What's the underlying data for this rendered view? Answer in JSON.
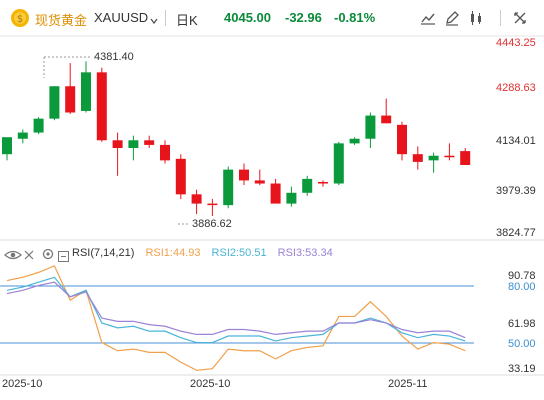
{
  "header": {
    "symbol_name": "现货黄金",
    "symbol_code": "XAUUSD",
    "period": "日K",
    "price": "4045.00",
    "change": "-32.96",
    "change_pct": "-0.81%",
    "icons": [
      "draw-line-icon",
      "edit-pen-icon",
      "indicator-icon",
      "expand-icon",
      "settings-icon"
    ]
  },
  "colors": {
    "up": "#e8141b",
    "down": "#0a9a3c",
    "rsi1": "#f0a04b",
    "rsi2": "#4ab4d8",
    "rsi3": "#9a82d6",
    "price_line": "#4a90d9"
  },
  "price_axis": {
    "ticks": [
      "4443.25",
      "4288.63",
      "4134.01",
      "3979.39",
      "3824.77"
    ]
  },
  "annotations": {
    "high": "4381.40",
    "low": "3886.62"
  },
  "rsi": {
    "label": "RSI(7,14,21)",
    "rsi1": "RSI1:44.93",
    "rsi2": "RSI2:50.51",
    "rsi3": "RSI3:53.34",
    "ticks": [
      "90.78",
      "80.00",
      "61.98",
      "50.00",
      "33.19"
    ]
  },
  "x_axis": {
    "labels": [
      "2025-10",
      "2025-10",
      "2025-11"
    ]
  },
  "chart_data": {
    "type": "candlestick",
    "series": [
      {
        "o": 4080,
        "h": 4130,
        "l": 4060,
        "c": 4135
      },
      {
        "o": 4130,
        "h": 4160,
        "l": 4115,
        "c": 4150
      },
      {
        "o": 4150,
        "h": 4200,
        "l": 4145,
        "c": 4195
      },
      {
        "o": 4195,
        "h": 4300,
        "l": 4190,
        "c": 4300
      },
      {
        "o": 4300,
        "h": 4375,
        "l": 4210,
        "c": 4215
      },
      {
        "o": 4220,
        "h": 4381,
        "l": 4215,
        "c": 4345
      },
      {
        "o": 4345,
        "h": 4360,
        "l": 4120,
        "c": 4125
      },
      {
        "o": 4125,
        "h": 4150,
        "l": 4010,
        "c": 4100
      },
      {
        "o": 4100,
        "h": 4140,
        "l": 4060,
        "c": 4125
      },
      {
        "o": 4125,
        "h": 4140,
        "l": 4100,
        "c": 4110
      },
      {
        "o": 4110,
        "h": 4125,
        "l": 4050,
        "c": 4060
      },
      {
        "o": 4065,
        "h": 4080,
        "l": 3935,
        "c": 3950
      },
      {
        "o": 3950,
        "h": 3965,
        "l": 3886,
        "c": 3920
      },
      {
        "o": 3920,
        "h": 3935,
        "l": 3880,
        "c": 3915
      },
      {
        "o": 3915,
        "h": 4040,
        "l": 3905,
        "c": 4030
      },
      {
        "o": 4030,
        "h": 4050,
        "l": 3980,
        "c": 3995
      },
      {
        "o": 3995,
        "h": 4030,
        "l": 3980,
        "c": 3985
      },
      {
        "o": 3985,
        "h": 4000,
        "l": 3920,
        "c": 3920
      },
      {
        "o": 3920,
        "h": 3975,
        "l": 3910,
        "c": 3955
      },
      {
        "o": 3955,
        "h": 4010,
        "l": 3945,
        "c": 4000
      },
      {
        "o": 3990,
        "h": 3995,
        "l": 3975,
        "c": 3985
      },
      {
        "o": 3985,
        "h": 4120,
        "l": 3980,
        "c": 4115
      },
      {
        "o": 4115,
        "h": 4135,
        "l": 4110,
        "c": 4130
      },
      {
        "o": 4130,
        "h": 4215,
        "l": 4100,
        "c": 4205
      },
      {
        "o": 4205,
        "h": 4260,
        "l": 4180,
        "c": 4180
      },
      {
        "o": 4175,
        "h": 4185,
        "l": 4060,
        "c": 4080
      },
      {
        "o": 4080,
        "h": 4105,
        "l": 4030,
        "c": 4055
      },
      {
        "o": 4060,
        "h": 4085,
        "l": 4020,
        "c": 4075
      },
      {
        "o": 4075,
        "h": 4115,
        "l": 4060,
        "c": 4070
      },
      {
        "o": 4090,
        "h": 4100,
        "l": 4045,
        "c": 4045
      }
    ],
    "price_range": [
      3824.77,
      4443.25
    ],
    "rsi_series": {
      "rsi1": [
        88,
        90,
        93,
        97,
        76,
        82,
        50,
        45,
        46,
        44,
        44,
        38,
        33,
        34,
        46,
        45,
        45,
        40,
        45,
        47,
        48,
        66,
        66,
        75,
        66,
        54,
        46,
        50,
        49,
        45
      ],
      "rsi2": [
        82,
        84,
        87,
        90,
        78,
        82,
        62,
        59,
        60,
        57,
        57,
        53,
        50,
        50,
        54,
        54,
        54,
        51,
        53,
        54,
        55,
        62,
        62,
        65,
        62,
        56,
        53,
        55,
        54,
        51
      ],
      "rsi3": [
        80,
        82,
        85,
        87,
        78,
        81,
        65,
        63,
        63,
        61,
        60,
        57,
        55,
        55,
        58,
        58,
        57,
        55,
        56,
        57,
        57,
        62,
        62,
        64,
        62,
        58,
        56,
        57,
        57,
        53
      ]
    },
    "rsi_range": [
      33.19,
      90.78
    ]
  }
}
